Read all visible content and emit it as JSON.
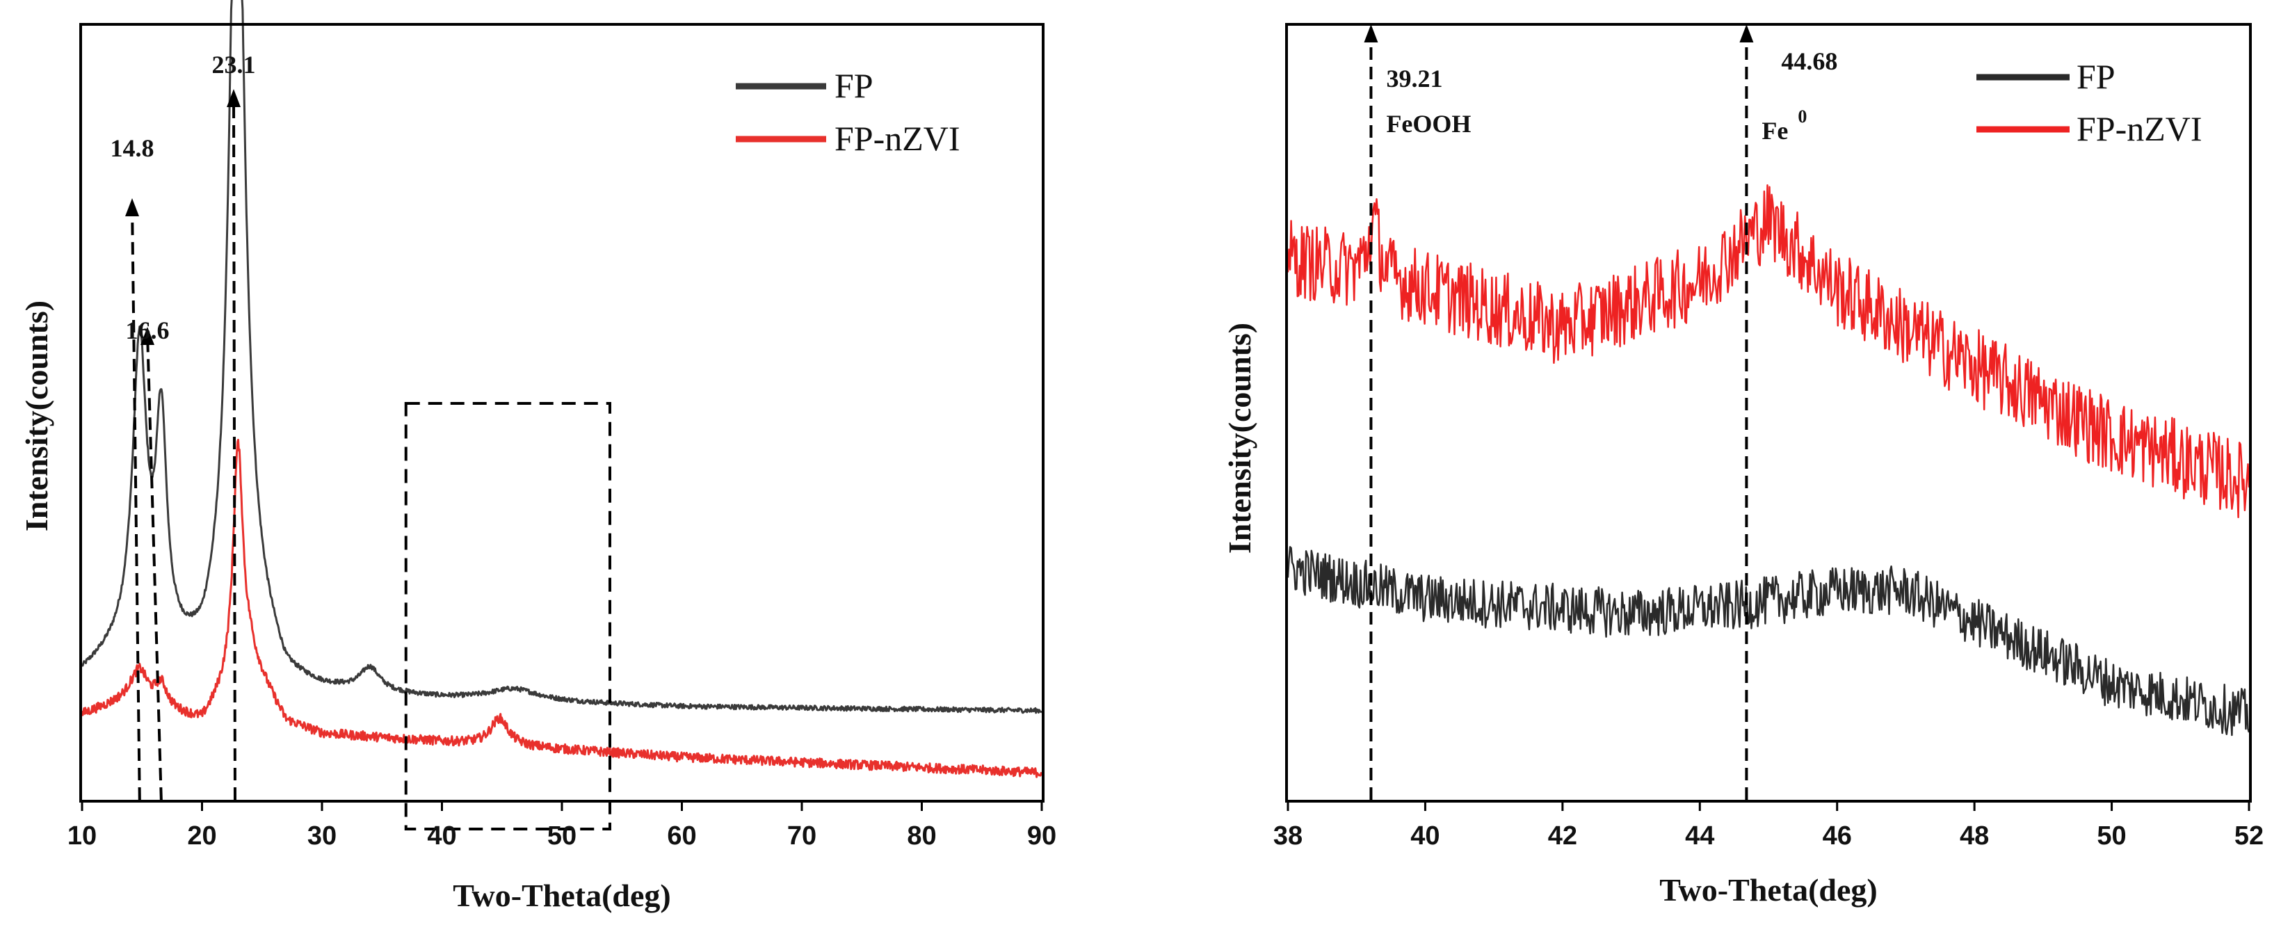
{
  "chart_data": [
    {
      "type": "line",
      "xlabel": "Two-Theta(deg)",
      "ylabel": "Intensity(counts)",
      "xlim": [
        10,
        90
      ],
      "ylim": [
        0,
        100
      ],
      "xticks": [
        "10",
        "20",
        "30",
        "40",
        "50",
        "60",
        "70",
        "80",
        "90"
      ],
      "legend_position": "top-right",
      "series": [
        {
          "name": "FP",
          "color": "#3a3a3a",
          "baseline": [
            [
              10,
              16
            ],
            [
              14,
              20
            ],
            [
              20,
              17
            ],
            [
              24,
              24
            ],
            [
              27,
              15
            ],
            [
              30,
              14
            ],
            [
              40,
              13
            ],
            [
              60,
              12
            ],
            [
              90,
              11.5
            ]
          ],
          "peaks": [
            [
              14.8,
              38,
              0.7
            ],
            [
              16.6,
              28,
              0.55
            ],
            [
              22.9,
              112,
              0.75
            ],
            [
              34,
              3,
              1.0
            ],
            [
              46,
              1.5,
              2.5
            ]
          ],
          "noise": 0.3
        },
        {
          "name": "FP-nZVI",
          "color": "#e8302c",
          "baseline": [
            [
              10,
              11
            ],
            [
              14,
              13
            ],
            [
              20,
              10
            ],
            [
              24,
              18
            ],
            [
              27,
              10
            ],
            [
              30,
              8.5
            ],
            [
              40,
              7.5
            ],
            [
              60,
              5.5
            ],
            [
              90,
              3.5
            ]
          ],
          "peaks": [
            [
              14.8,
              4,
              0.8
            ],
            [
              16.6,
              3,
              0.6
            ],
            [
              23.0,
              30,
              0.5
            ],
            [
              44.8,
              3.5,
              0.9
            ]
          ],
          "noise": 0.6
        }
      ],
      "annotations": [
        {
          "label": "14.8",
          "x": 14.8
        },
        {
          "label": "16.6",
          "x": 16.6
        },
        {
          "label": "23.1",
          "x": 23.1
        }
      ],
      "zoom_box": {
        "x_from": 37,
        "x_to": 54
      }
    },
    {
      "type": "line",
      "xlabel": "Two-Theta(deg)",
      "ylabel": "Intensity(counts)",
      "xlim": [
        38,
        52
      ],
      "ylim": [
        0,
        100
      ],
      "xticks": [
        "38",
        "40",
        "42",
        "44",
        "46",
        "48",
        "50",
        "52"
      ],
      "legend_position": "top-right",
      "series": [
        {
          "name": "FP",
          "color": "#2a2a2a",
          "baseline": [
            [
              38,
              30
            ],
            [
              40,
              26
            ],
            [
              43,
              24
            ],
            [
              44.5,
              25
            ],
            [
              46,
              27
            ],
            [
              47,
              27
            ],
            [
              48,
              23
            ],
            [
              50,
              15
            ],
            [
              52,
              11
            ]
          ],
          "peaks": [],
          "noise": 3.2
        },
        {
          "name": "FP-nZVI",
          "color": "#ee2222",
          "baseline": [
            [
              38,
              70
            ],
            [
              40,
              66
            ],
            [
              42,
              61
            ],
            [
              44,
              67
            ],
            [
              45,
              75
            ],
            [
              46,
              66
            ],
            [
              48,
              56
            ],
            [
              50,
              47
            ],
            [
              52,
              41
            ]
          ],
          "peaks": [
            [
              39.25,
              7,
              0.1
            ]
          ],
          "noise": 5
        }
      ],
      "annotations": [
        {
          "value": "39.21",
          "phase": "FeOOH",
          "x": 39.21
        },
        {
          "value": "44.68",
          "phase": "Fe",
          "superscript": "0",
          "x": 44.68
        }
      ]
    }
  ]
}
